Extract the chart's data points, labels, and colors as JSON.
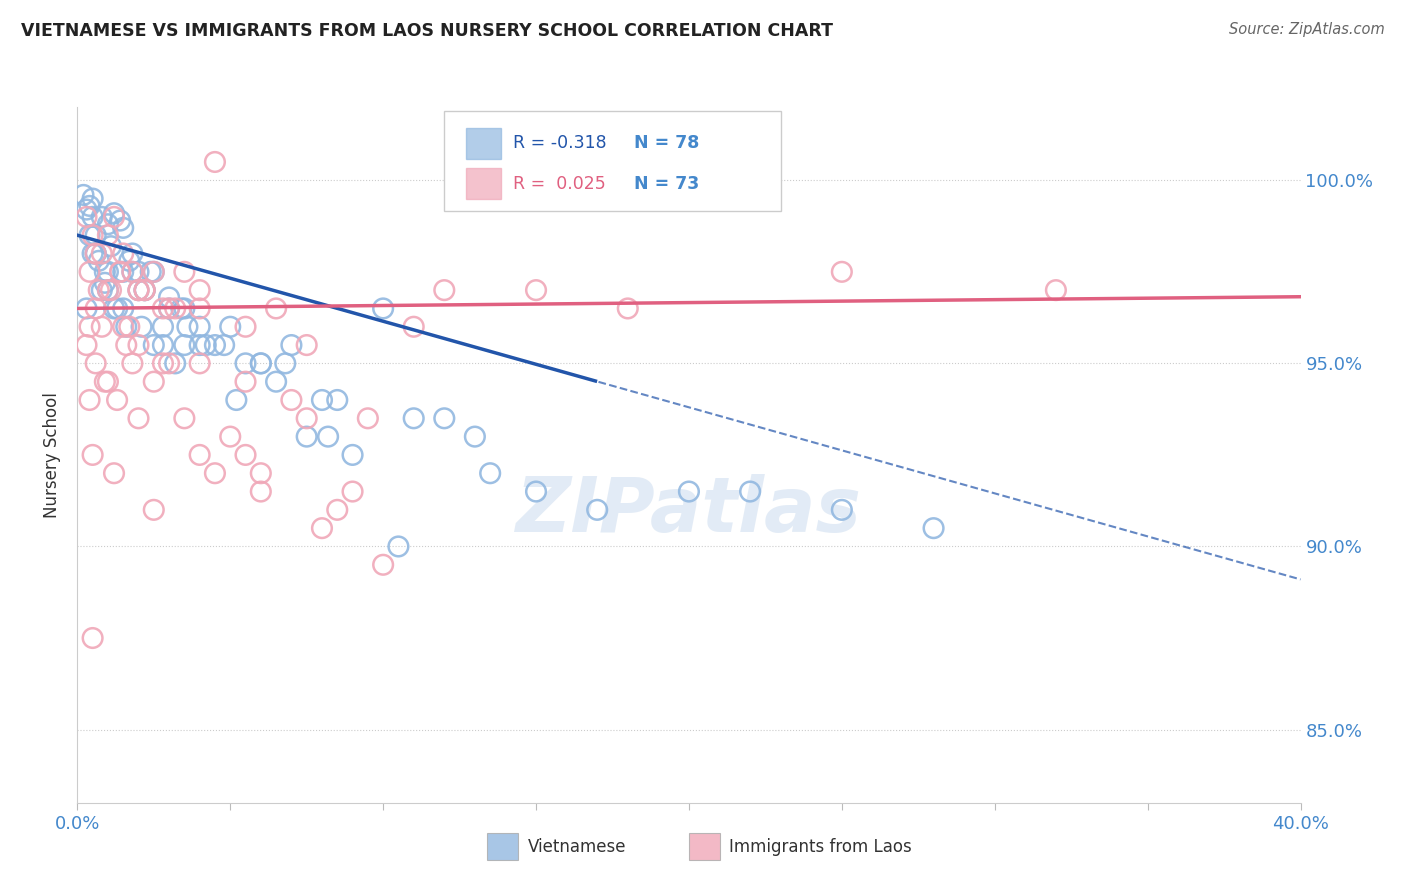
{
  "title": "VIETNAMESE VS IMMIGRANTS FROM LAOS NURSERY SCHOOL CORRELATION CHART",
  "source": "Source: ZipAtlas.com",
  "ylabel": "Nursery School",
  "x_min": 0.0,
  "x_max": 40.0,
  "y_min": 83.0,
  "y_max": 102.0,
  "yticks": [
    85.0,
    90.0,
    95.0,
    100.0
  ],
  "ytick_labels": [
    "85.0%",
    "90.0%",
    "95.0%",
    "100.0%"
  ],
  "xticks": [
    0,
    5,
    10,
    15,
    20,
    25,
    30,
    35,
    40
  ],
  "legend_r_blue": "-0.318",
  "legend_n_blue": "78",
  "legend_r_pink": "0.025",
  "legend_n_pink": "73",
  "legend_label_blue": "Vietnamese",
  "legend_label_pink": "Immigrants from Laos",
  "blue_scatter_color": "#92b8e0",
  "pink_scatter_color": "#f0a8b8",
  "blue_line_color": "#2255aa",
  "pink_line_color": "#e06080",
  "title_color": "#222222",
  "axis_label_color": "#4488cc",
  "watermark_color": "#d0dff0",
  "blue_scatter_x": [
    0.5,
    0.8,
    1.0,
    0.3,
    0.6,
    1.2,
    1.5,
    1.8,
    2.0,
    0.4,
    0.7,
    0.9,
    1.1,
    1.4,
    2.2,
    2.5,
    3.0,
    3.5,
    4.0,
    0.2,
    0.6,
    1.0,
    1.3,
    1.7,
    2.1,
    2.8,
    3.2,
    4.5,
    5.0,
    6.0,
    7.0,
    8.0,
    0.5,
    0.3,
    1.5,
    2.0,
    3.0,
    4.0,
    5.5,
    6.5,
    8.5,
    10.0,
    12.0,
    0.4,
    0.8,
    1.2,
    1.6,
    2.4,
    3.6,
    4.8,
    6.0,
    7.5,
    9.0,
    11.0,
    13.0,
    0.5,
    1.0,
    1.5,
    2.5,
    3.5,
    0.6,
    0.9,
    1.8,
    2.2,
    2.8,
    3.4,
    4.2,
    5.2,
    6.8,
    8.2,
    20.0,
    25.0,
    13.5,
    15.0,
    17.0,
    10.5,
    22.0,
    28.0
  ],
  "blue_scatter_y": [
    99.5,
    99.0,
    98.8,
    99.2,
    98.5,
    99.1,
    98.7,
    98.0,
    97.5,
    99.3,
    97.8,
    97.2,
    98.2,
    98.9,
    97.0,
    97.5,
    96.8,
    96.5,
    96.0,
    99.6,
    98.0,
    97.5,
    96.5,
    97.8,
    96.0,
    95.5,
    95.0,
    95.5,
    96.0,
    95.0,
    95.5,
    94.0,
    98.0,
    96.5,
    97.5,
    97.0,
    96.5,
    95.5,
    95.0,
    94.5,
    94.0,
    96.5,
    93.5,
    98.5,
    97.0,
    96.5,
    96.0,
    97.5,
    96.0,
    95.5,
    95.0,
    93.0,
    92.5,
    93.5,
    93.0,
    99.0,
    97.0,
    96.5,
    95.5,
    95.5,
    98.0,
    97.5,
    97.5,
    97.0,
    96.0,
    96.5,
    95.5,
    94.0,
    95.0,
    93.0,
    91.5,
    91.0,
    92.0,
    91.5,
    91.0,
    90.0,
    91.5,
    90.5
  ],
  "pink_scatter_x": [
    0.3,
    0.5,
    0.8,
    1.0,
    1.2,
    0.4,
    0.7,
    1.5,
    1.8,
    2.0,
    2.5,
    0.6,
    1.1,
    1.4,
    1.7,
    2.2,
    2.8,
    3.2,
    4.0,
    4.5,
    0.3,
    0.6,
    1.0,
    1.5,
    2.0,
    3.0,
    0.4,
    0.9,
    1.3,
    1.8,
    2.5,
    3.5,
    5.0,
    6.5,
    7.5,
    0.5,
    1.2,
    2.0,
    3.0,
    4.5,
    6.0,
    8.0,
    10.0,
    0.8,
    1.6,
    2.8,
    4.0,
    5.5,
    7.0,
    9.5,
    0.4,
    1.0,
    2.0,
    3.5,
    0.6,
    1.4,
    2.2,
    4.0,
    5.5,
    7.5,
    12.0,
    15.0,
    18.0,
    25.0,
    32.0,
    4.0,
    6.0,
    9.0,
    0.5,
    2.5,
    5.5,
    8.5,
    11.0
  ],
  "pink_scatter_y": [
    99.0,
    98.5,
    98.0,
    98.5,
    99.0,
    97.5,
    97.0,
    98.0,
    97.5,
    97.0,
    97.5,
    96.5,
    97.0,
    97.5,
    96.0,
    97.0,
    96.5,
    96.5,
    97.0,
    100.5,
    95.5,
    95.0,
    94.5,
    96.0,
    95.5,
    95.0,
    94.0,
    94.5,
    94.0,
    95.0,
    94.5,
    93.5,
    93.0,
    96.5,
    93.5,
    92.5,
    92.0,
    93.5,
    96.5,
    92.0,
    91.5,
    90.5,
    89.5,
    96.0,
    95.5,
    95.0,
    95.0,
    94.5,
    94.0,
    93.5,
    96.0,
    97.0,
    97.0,
    97.5,
    98.0,
    97.5,
    97.0,
    96.5,
    96.0,
    95.5,
    97.0,
    97.0,
    96.5,
    97.5,
    97.0,
    92.5,
    92.0,
    91.5,
    87.5,
    91.0,
    92.5,
    91.0,
    96.0
  ],
  "blue_solid_x_end": 17.0,
  "blue_intercept": 98.5,
  "blue_slope": -0.235,
  "pink_intercept": 96.5,
  "pink_slope": 0.008
}
